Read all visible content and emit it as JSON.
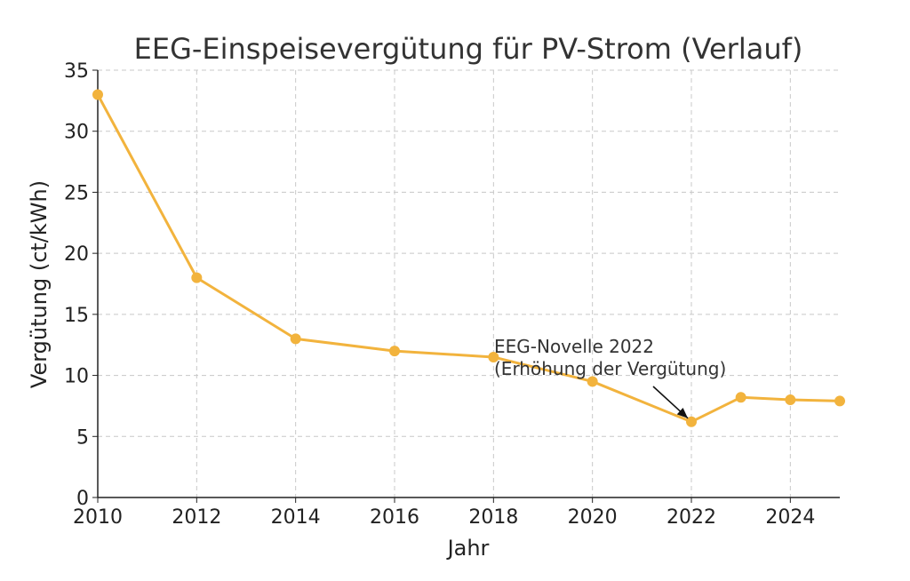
{
  "chart_data": {
    "type": "line",
    "title": "EEG-Einspeisevergütung für PV-Strom (Verlauf)",
    "xlabel": "Jahr",
    "ylabel": "Vergütung (ct/kWh)",
    "xlim": [
      2010,
      2025
    ],
    "ylim": [
      0,
      35
    ],
    "x_ticks": [
      "2010",
      "2012",
      "2014",
      "2016",
      "2018",
      "2020",
      "2022",
      "2024"
    ],
    "y_ticks": [
      "0",
      "5",
      "10",
      "15",
      "20",
      "25",
      "30",
      "35"
    ],
    "grid": true,
    "color": "#f2b33d",
    "series": [
      {
        "x": [
          2010,
          2012,
          2014,
          2016,
          2018,
          2020,
          2022,
          2023,
          2024,
          2025
        ],
        "values": [
          33,
          18,
          13,
          12,
          11.5,
          9.5,
          6.2,
          8.2,
          8.0,
          7.9
        ]
      }
    ],
    "annotation": {
      "lines": [
        "EEG-Novelle 2022",
        "(Erhöhung der Vergütung)"
      ],
      "x": 2022,
      "y": 6.2
    }
  }
}
